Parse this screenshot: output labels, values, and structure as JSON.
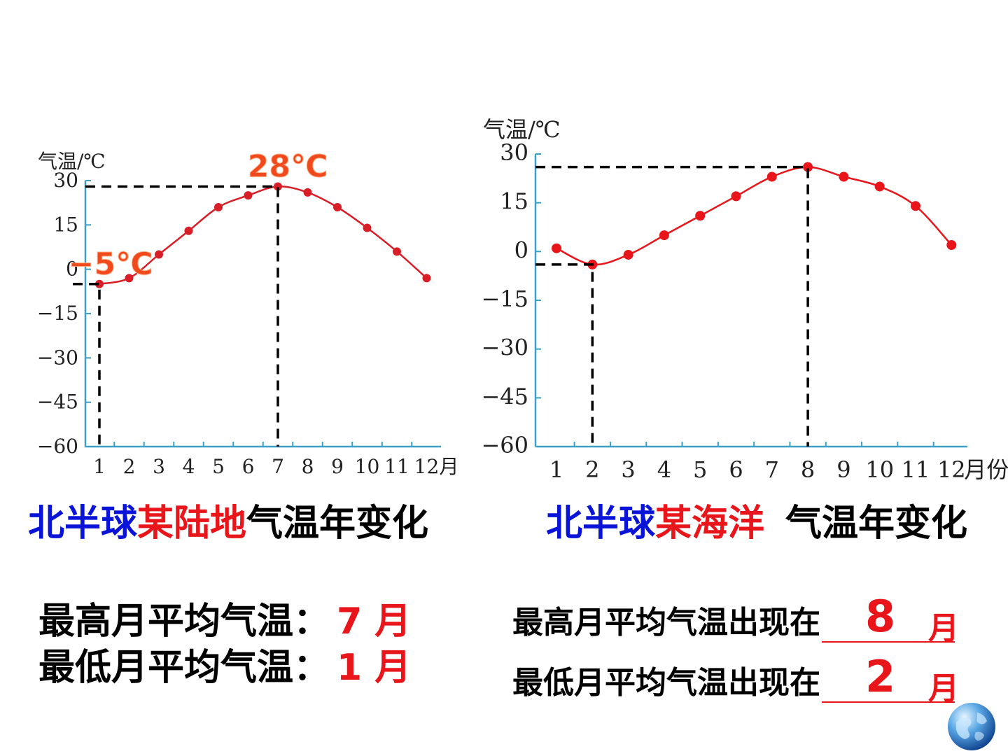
{
  "charts": {
    "land": {
      "ylabel": "气温/℃",
      "xunit": "月",
      "max_annotation": "28℃",
      "min_annotation": "−5℃"
    },
    "ocean": {
      "ylabel": "气温/℃",
      "xunit": "月份"
    }
  },
  "chart_data": [
    {
      "type": "line",
      "ylabel": "气温/℃",
      "xlabel": "月",
      "x": [
        1,
        2,
        3,
        4,
        5,
        6,
        7,
        8,
        9,
        10,
        11,
        12
      ],
      "y_ticks": [
        30,
        15,
        0,
        -15,
        -30,
        -45,
        -60
      ],
      "ylim": [
        -60,
        30
      ],
      "series": [
        {
          "values": [
            -5,
            -3,
            5,
            13,
            21,
            25,
            28,
            26,
            21,
            14,
            6,
            -3
          ]
        }
      ],
      "annotations": [
        "28℃",
        "−5℃"
      ],
      "color": "#d81e27"
    },
    {
      "type": "line",
      "ylabel": "气温/℃",
      "xlabel": "月份",
      "x": [
        1,
        2,
        3,
        4,
        5,
        6,
        7,
        8,
        9,
        10,
        11,
        12
      ],
      "y_ticks": [
        30,
        15,
        0,
        -15,
        -30,
        -45,
        -60
      ],
      "ylim": [
        -60,
        30
      ],
      "series": [
        {
          "values": [
            1,
            -4,
            -1,
            5,
            11,
            17,
            23,
            26,
            23,
            20,
            14,
            2
          ]
        }
      ],
      "color": "#e8151b"
    }
  ],
  "titles": {
    "land": {
      "part1": "北半球",
      "part2": "某陆地",
      "part3": "气温年变化"
    },
    "ocean": {
      "part1": "北半球",
      "part2": "某海洋",
      "part3": "气温年变化"
    }
  },
  "answers": {
    "land_max_label": "最高月平均气温：",
    "land_max_value": "7 月",
    "land_min_label": "最低月平均气温：",
    "land_min_value": "1 月",
    "ocean_max_label": "最高月平均气温出现在",
    "ocean_max_value": "8",
    "ocean_min_label": "最低月平均气温出现在",
    "ocean_min_value": "2",
    "ocean_unit": "月"
  },
  "colors": {
    "blue": "#0a14d8",
    "red": "#e8151b",
    "axis": "#3aa0c8"
  }
}
